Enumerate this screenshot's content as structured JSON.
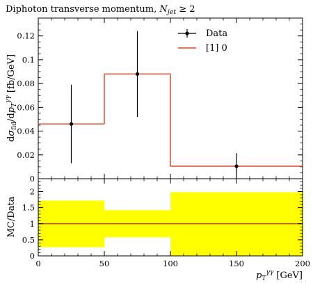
{
  "chart_data": {
    "type": "line",
    "title": "Diphoton transverse momentum, N_jet ≥ 2",
    "title_text": "Diphoton transverse momentum, ",
    "title_math": "N",
    "title_math_sub": "jet",
    "title_math_tail": " ≥ 2",
    "main_panel": {
      "ylabel": "dσ_fid / dp_T^γγ [fb/GeV]",
      "ylabel_parts": {
        "d1": "d",
        "sigma": "σ",
        "fid": "fid",
        "slash": "/",
        "d2": "d",
        "p": "p",
        "T": "T",
        "gg": "γγ",
        "unit": " [fb/GeV]"
      },
      "xlim": [
        0,
        200
      ],
      "ylim": [
        0,
        0.135
      ],
      "y_ticks": [
        0,
        0.02,
        0.04,
        0.06,
        0.08,
        0.1,
        0.12
      ],
      "y_tick_labels": [
        "0",
        "0.02",
        "0.04",
        "0.06",
        "0.08",
        "0.1",
        "0.12"
      ],
      "series": [
        {
          "name": "Data",
          "kind": "points_with_errors",
          "color": "#000000",
          "x": [
            25,
            75,
            150
          ],
          "y": [
            0.046,
            0.088,
            0.0105
          ],
          "y_err_low": [
            0.033,
            0.036,
            0.0095
          ],
          "y_err_high": [
            0.033,
            0.036,
            0.011
          ]
        },
        {
          "name": "[1] 0",
          "kind": "histogram",
          "color": "#e0482a",
          "bin_edges": [
            0,
            50,
            100,
            200
          ],
          "values": [
            0.046,
            0.088,
            0.0105
          ]
        }
      ],
      "legend": {
        "position": "top-right",
        "entries": [
          "Data",
          "[1] 0"
        ]
      }
    },
    "ratio_panel": {
      "ylabel": "MC/Data",
      "ylim": [
        0,
        2.4
      ],
      "y_ticks": [
        0,
        0.5,
        1,
        1.5,
        2
      ],
      "y_tick_labels": [
        "0",
        "0.5",
        "1",
        "1.5",
        "2"
      ],
      "reference_line": 1,
      "reference_color": "#e0482a",
      "band_color": "#ffff00",
      "band": [
        {
          "x_low": 0,
          "x_high": 50,
          "low": 0.27,
          "high": 1.72
        },
        {
          "x_low": 50,
          "x_high": 100,
          "low": 0.58,
          "high": 1.42
        },
        {
          "x_low": 100,
          "x_high": 200,
          "low": 0.0,
          "high": 1.98
        }
      ]
    },
    "x_ticks": [
      0,
      50,
      100,
      150,
      200
    ],
    "x_tick_labels": [
      "0",
      "50",
      "100",
      "150",
      "200"
    ],
    "xlabel": "p_T^γγ [GeV]",
    "xlabel_parts": {
      "p": "p",
      "T": "T",
      "gg": "γγ",
      "unit": " [GeV]"
    }
  }
}
